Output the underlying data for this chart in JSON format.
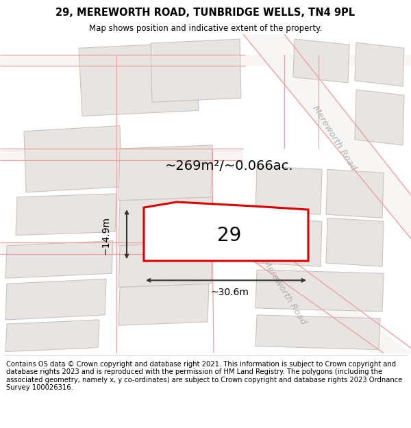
{
  "title": "29, MEREWORTH ROAD, TUNBRIDGE WELLS, TN4 9PL",
  "subtitle": "Map shows position and indicative extent of the property.",
  "footer": "Contains OS data © Crown copyright and database right 2021. This information is subject to Crown copyright and database rights 2023 and is reproduced with the permission of HM Land Registry. The polygons (including the associated geometry, namely x, y co-ordinates) are subject to Crown copyright and database rights 2023 Ordnance Survey 100026316.",
  "area_label": "~269m²/~0.066ac.",
  "width_label": "~30.6m",
  "height_label": "~14.9m",
  "number_label": "29",
  "map_bg": "#f7f4f2",
  "building_fill": "#e8e4e1",
  "building_edge": "#c8c4c0",
  "highlight_color": "#dd0000",
  "road_line_color": "#f0a0a0",
  "road_line_color2": "#d08080",
  "dim_line_color": "#333333",
  "road_label_color": "#b0b0b0",
  "title_fontsize": 10.5,
  "subtitle_fontsize": 8.5,
  "footer_fontsize": 7.2,
  "area_fontsize": 14,
  "number_fontsize": 20,
  "dim_fontsize": 10,
  "road_label_fontsize": 9.5
}
